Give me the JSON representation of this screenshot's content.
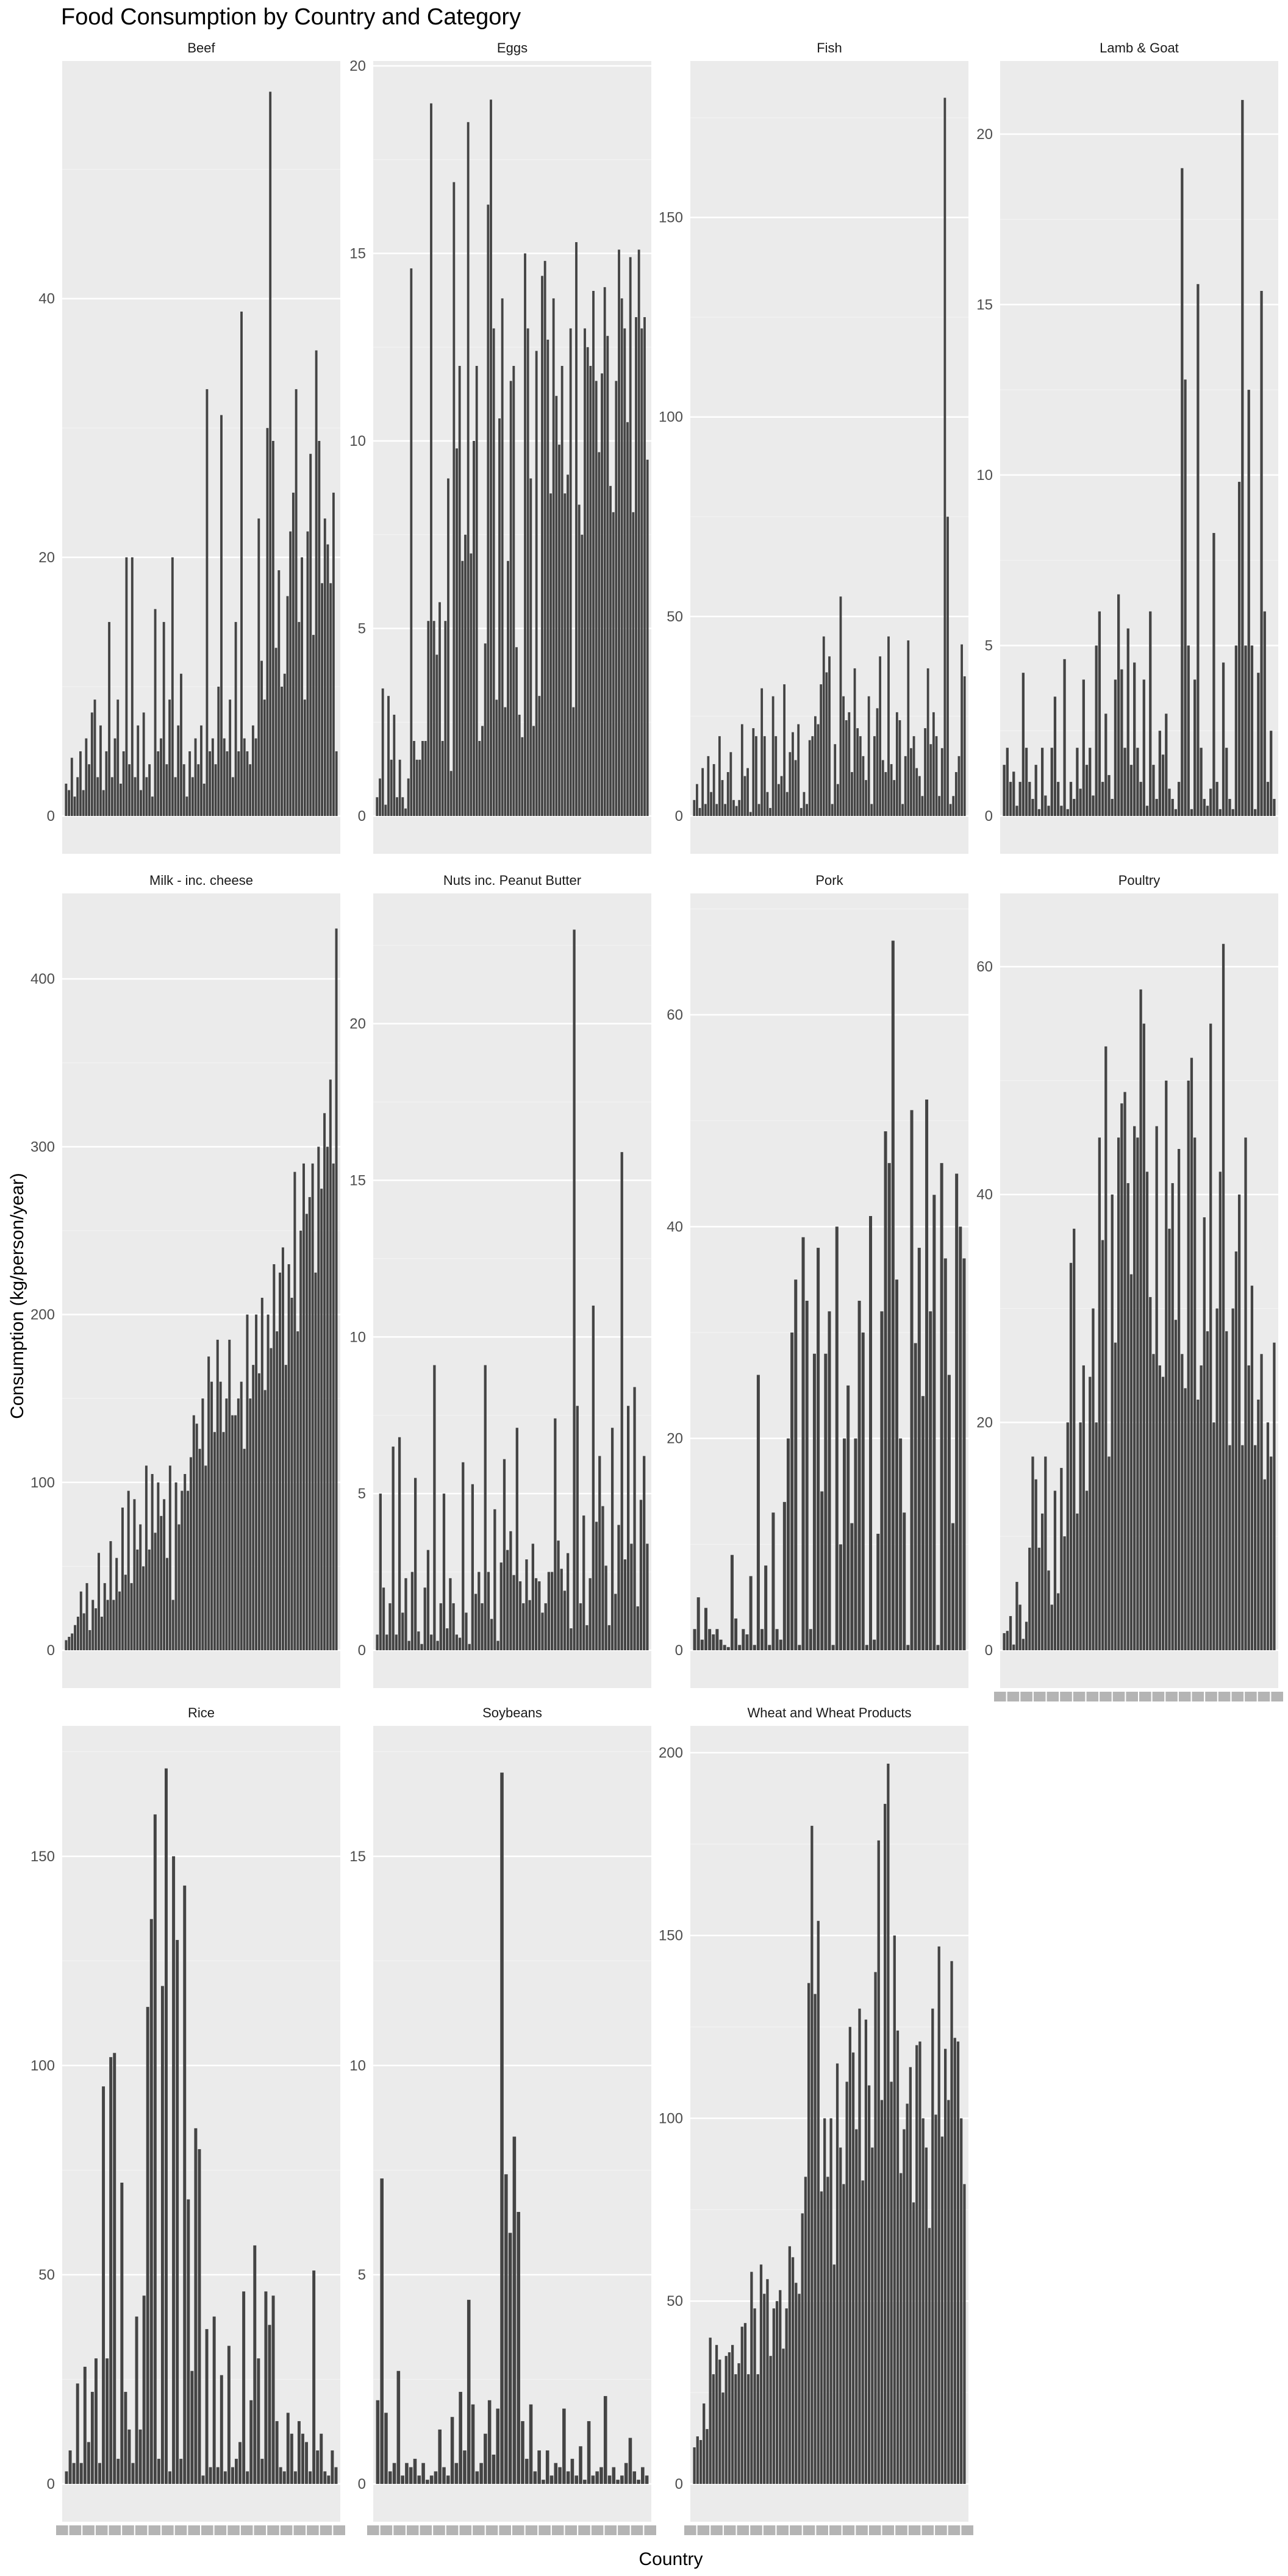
{
  "chart_data": {
    "type": "bar",
    "title": "Food Consumption by Country and Category",
    "xlabel": "Country",
    "ylabel": "Consumption (kg/person/year)",
    "colors": {
      "bar": "#444444",
      "panel": "#ebebeb",
      "grid": "#ffffff"
    },
    "grid": true,
    "facets": [
      {
        "name": "Beef",
        "ylim": [
          0,
          58
        ],
        "yticks": [
          0,
          20,
          40
        ],
        "values": [
          2.5,
          2,
          4.5,
          1.5,
          3,
          5,
          2,
          6,
          4,
          8,
          9,
          3,
          7,
          2,
          5,
          15,
          3,
          6,
          9,
          2.5,
          5,
          20,
          4,
          20,
          3,
          7,
          2,
          8,
          3,
          4,
          1.5,
          16,
          5,
          6,
          15,
          4,
          9,
          20,
          3,
          7,
          11,
          4,
          1.5,
          5,
          3,
          6,
          4,
          7,
          2.5,
          33,
          5,
          6,
          4,
          10,
          31,
          6,
          5,
          9,
          3,
          15,
          5,
          39,
          6,
          5,
          4,
          7,
          6,
          23,
          12,
          9,
          30,
          56,
          29,
          13,
          19,
          10,
          11,
          17,
          22,
          25,
          33,
          15,
          20,
          9,
          22,
          28,
          14,
          36,
          29,
          18,
          23,
          21,
          18,
          25,
          5
        ]
      },
      {
        "name": "Eggs",
        "ylim": [
          0,
          20
        ],
        "yticks": [
          0,
          5,
          10,
          15,
          20
        ],
        "values": [
          0.5,
          1,
          3.4,
          0.3,
          3.2,
          1.5,
          2.7,
          0.5,
          1.5,
          0.5,
          0.2,
          1,
          14.6,
          2,
          1.5,
          1.5,
          2,
          2,
          5.2,
          19,
          5.2,
          4.3,
          5.7,
          2,
          5.2,
          9,
          1.2,
          16.9,
          9.8,
          12,
          6.8,
          7.5,
          18.5,
          7,
          10,
          12,
          2,
          2.4,
          4.6,
          16.3,
          19.1,
          13,
          3.1,
          10.6,
          13.8,
          2.9,
          6.8,
          11.6,
          12,
          4.5,
          2.7,
          2.1,
          15,
          13,
          9,
          2.4,
          12.4,
          3.2,
          14.4,
          14.8,
          12.7,
          8.6,
          13.8,
          11.2,
          9.9,
          12,
          8.6,
          9.1,
          13,
          2.9,
          15.3,
          8.3,
          7.5,
          13,
          12.5,
          12,
          14,
          11.6,
          9.7,
          11.8,
          14.1,
          12.8,
          8.8,
          8.1,
          11.6,
          15.1,
          13.8,
          13,
          10.5,
          14.9,
          8.1,
          13.3,
          15.1,
          13,
          13.3,
          9.5
        ]
      },
      {
        "name": "Fish",
        "ylim": [
          0,
          188
        ],
        "yticks": [
          0,
          50,
          100,
          150
        ],
        "values": [
          4,
          8,
          2,
          12,
          3,
          15,
          6,
          13,
          3,
          20,
          9,
          3,
          11,
          16,
          4,
          2.5,
          4,
          23,
          10,
          12,
          1,
          22,
          20,
          3,
          32,
          20,
          6,
          2,
          30,
          20,
          8,
          10,
          33,
          6,
          16,
          21,
          14,
          23,
          2,
          6,
          3,
          19,
          20,
          25,
          23,
          33,
          45,
          36,
          40,
          3,
          18,
          8,
          55,
          30,
          24,
          26,
          11,
          37,
          22,
          20,
          15,
          9,
          30,
          3,
          20,
          27,
          40,
          14,
          11,
          45,
          13,
          9,
          26,
          24,
          3,
          15,
          44,
          17,
          20,
          12,
          10,
          5,
          22,
          37,
          18,
          26,
          20,
          5,
          17,
          180,
          75,
          3,
          5,
          11,
          15,
          43,
          35
        ]
      },
      {
        "name": "Lamb & Goat",
        "ylim": [
          0,
          22
        ],
        "yticks": [
          0,
          5,
          10,
          15,
          20
        ],
        "values": [
          1.5,
          2,
          1,
          1.3,
          0.3,
          1,
          4.2,
          2,
          1,
          0.5,
          1.5,
          0.2,
          2,
          0.6,
          0.3,
          2,
          3.5,
          1,
          0.3,
          4.6,
          0.2,
          1,
          0.5,
          2,
          0.8,
          4,
          1.5,
          2,
          0.6,
          5,
          6,
          1,
          3,
          1.2,
          0.5,
          4,
          6.5,
          4.3,
          2,
          5.5,
          1.5,
          4.5,
          2,
          1,
          4,
          0.3,
          6,
          1.5,
          0.5,
          2.5,
          1.8,
          3,
          0.8,
          0.5,
          0.2,
          1,
          19,
          12.8,
          5,
          0.2,
          4,
          15.6,
          2,
          0.5,
          0.3,
          0.8,
          8.3,
          1,
          0.2,
          4.5,
          2,
          0.5,
          0.2,
          5,
          9.8,
          21,
          5,
          12.5,
          5,
          0.2,
          4.2,
          15.4,
          6,
          1,
          2.5,
          0.5
        ]
      },
      {
        "name": "Milk - inc. cheese",
        "ylim": [
          0,
          448
        ],
        "yticks": [
          0,
          100,
          200,
          300,
          400
        ],
        "values": [
          6,
          8,
          10,
          15,
          20,
          35,
          22,
          40,
          12,
          30,
          25,
          58,
          20,
          40,
          30,
          65,
          30,
          55,
          35,
          85,
          45,
          95,
          40,
          90,
          60,
          75,
          50,
          110,
          60,
          105,
          70,
          100,
          80,
          90,
          55,
          110,
          30,
          100,
          75,
          95,
          105,
          95,
          115,
          140,
          135,
          120,
          150,
          110,
          175,
          160,
          130,
          185,
          160,
          130,
          150,
          185,
          140,
          140,
          150,
          160,
          120,
          200,
          150,
          170,
          200,
          165,
          210,
          155,
          200,
          180,
          230,
          190,
          225,
          240,
          170,
          230,
          210,
          285,
          190,
          250,
          290,
          260,
          270,
          290,
          225,
          300,
          275,
          320,
          300,
          340,
          290,
          430
        ]
      },
      {
        "name": "Nuts inc. Peanut Butter",
        "ylim": [
          0,
          24
        ],
        "yticks": [
          0,
          5,
          10,
          15,
          20
        ],
        "values": [
          0.5,
          5,
          2,
          0.5,
          1.5,
          6.5,
          0.5,
          6.8,
          1.2,
          2.3,
          0.3,
          2.5,
          5.5,
          0.6,
          0.2,
          2,
          3.2,
          0.5,
          9.1,
          0.3,
          1.5,
          5,
          0.7,
          2.3,
          1.5,
          0.5,
          0.4,
          6,
          1.2,
          0.2,
          5.3,
          1.8,
          2.5,
          1.5,
          9.1,
          2.5,
          1,
          4.5,
          0.3,
          2.8,
          6.1,
          3.2,
          3.8,
          2.4,
          7.1,
          2.2,
          1.5,
          2.9,
          1.6,
          3.4,
          2.3,
          2.2,
          1.2,
          1.5,
          2.5,
          2.5,
          7.4,
          3.5,
          2.6,
          1.9,
          3.1,
          0.7,
          23,
          7.8,
          1.5,
          4.3,
          0.8,
          2.3,
          11,
          4.1,
          6.2,
          4.6,
          2.7,
          0.8,
          7.1,
          1.8,
          4,
          15.9,
          2.9,
          7.8,
          3.4,
          8.4,
          1.4,
          4.8,
          6.2,
          3.4
        ]
      },
      {
        "name": "Pork",
        "ylim": [
          0,
          71
        ],
        "yticks": [
          0,
          20,
          40,
          60
        ],
        "values": [
          2,
          5,
          1,
          4,
          2,
          1.5,
          2,
          1,
          0.5,
          0.3,
          9,
          3,
          0.5,
          2,
          1.5,
          7,
          0.5,
          26,
          2,
          8,
          0.5,
          13,
          2,
          1,
          14,
          20,
          30,
          35,
          0.5,
          39,
          33,
          2,
          28,
          38,
          15,
          28,
          32,
          0.5,
          40,
          10,
          20,
          25,
          12,
          20,
          33,
          30,
          0.5,
          41,
          1,
          11,
          32,
          49,
          46,
          67,
          35,
          20,
          13,
          0.5,
          51,
          29,
          38,
          24,
          52,
          32,
          43,
          0.5,
          46,
          37,
          26,
          12,
          45,
          40,
          37
        ]
      },
      {
        "name": "Poultry",
        "ylim": [
          0,
          66
        ],
        "yticks": [
          0,
          20,
          40,
          60
        ],
        "values": [
          1.5,
          1.7,
          3,
          0.5,
          6,
          4,
          1,
          2.5,
          9,
          17,
          15,
          9,
          12,
          17,
          7,
          4,
          14,
          5,
          16,
          10,
          20,
          34,
          37,
          12,
          20,
          25,
          14,
          24,
          30,
          20,
          45,
          36,
          53,
          17,
          40,
          27,
          45,
          48,
          49,
          41,
          33,
          46,
          45,
          58,
          55,
          42,
          31,
          26,
          46,
          25,
          24,
          50,
          37,
          41,
          29,
          44,
          26,
          23,
          50,
          52,
          45,
          22,
          25,
          38,
          28,
          55,
          20,
          30,
          42,
          62,
          28,
          18,
          30,
          35,
          40,
          18,
          45,
          25,
          32,
          18,
          22,
          26,
          15,
          20,
          17,
          27
        ]
      },
      {
        "name": "Rice",
        "ylim": [
          0,
          180
        ],
        "yticks": [
          0,
          50,
          100,
          150
        ],
        "values": [
          3,
          8,
          5,
          24,
          5,
          28,
          10,
          22,
          30,
          5,
          95,
          30,
          102,
          103,
          6,
          72,
          22,
          13,
          5,
          40,
          13,
          45,
          114,
          135,
          160,
          6,
          119,
          171,
          3,
          150,
          130,
          6,
          143,
          68,
          27,
          85,
          80,
          2,
          37,
          4,
          40,
          4,
          26,
          3,
          33,
          4,
          6,
          10,
          46,
          3,
          20,
          57,
          30,
          6,
          46,
          38,
          45,
          15,
          4,
          3,
          17,
          12,
          3,
          15,
          12,
          10,
          3,
          51,
          8,
          12,
          3,
          2,
          8,
          4
        ]
      },
      {
        "name": "Soybeans",
        "ylim": [
          0,
          18
        ],
        "yticks": [
          0,
          5,
          10,
          15
        ],
        "values": [
          2,
          7.3,
          1.7,
          0.3,
          0.5,
          2.7,
          0.2,
          0.5,
          0.4,
          0.6,
          0.2,
          0.5,
          0.1,
          0.2,
          0.3,
          1.3,
          0.4,
          0.2,
          1.6,
          0.5,
          2.2,
          0.8,
          4.4,
          1.9,
          0.3,
          0.5,
          1.2,
          2,
          0.7,
          1.8,
          17,
          7.4,
          6,
          8.3,
          6.5,
          1.5,
          0.6,
          1.9,
          0.3,
          0.8,
          0.1,
          0.8,
          0.2,
          0.5,
          0.4,
          1.8,
          0.3,
          0.6,
          0.2,
          0.9,
          0.1,
          1.5,
          0.2,
          0.3,
          0.4,
          2.1,
          0.2,
          0.4,
          0.1,
          0.2,
          0.5,
          1.1,
          0.3,
          0.1,
          0.4,
          0.2
        ]
      },
      {
        "name": "Wheat and Wheat Products",
        "ylim": [
          0,
          206
        ],
        "yticks": [
          0,
          50,
          100,
          150,
          200
        ],
        "values": [
          10,
          13,
          12,
          22,
          15,
          40,
          30,
          38,
          34,
          25,
          35,
          36,
          38,
          30,
          33,
          43,
          44,
          30,
          58,
          48,
          30,
          60,
          52,
          56,
          35,
          48,
          50,
          53,
          37,
          48,
          65,
          62,
          55,
          52,
          74,
          84,
          137,
          180,
          134,
          154,
          80,
          100,
          84,
          100,
          60,
          115,
          92,
          82,
          110,
          125,
          118,
          97,
          130,
          83,
          127,
          109,
          92,
          140,
          176,
          105,
          186,
          197,
          110,
          150,
          124,
          85,
          97,
          104,
          114,
          77,
          120,
          121,
          100,
          92,
          70,
          130,
          101,
          147,
          95,
          119,
          105,
          143,
          122,
          121,
          100,
          82
        ]
      }
    ]
  }
}
